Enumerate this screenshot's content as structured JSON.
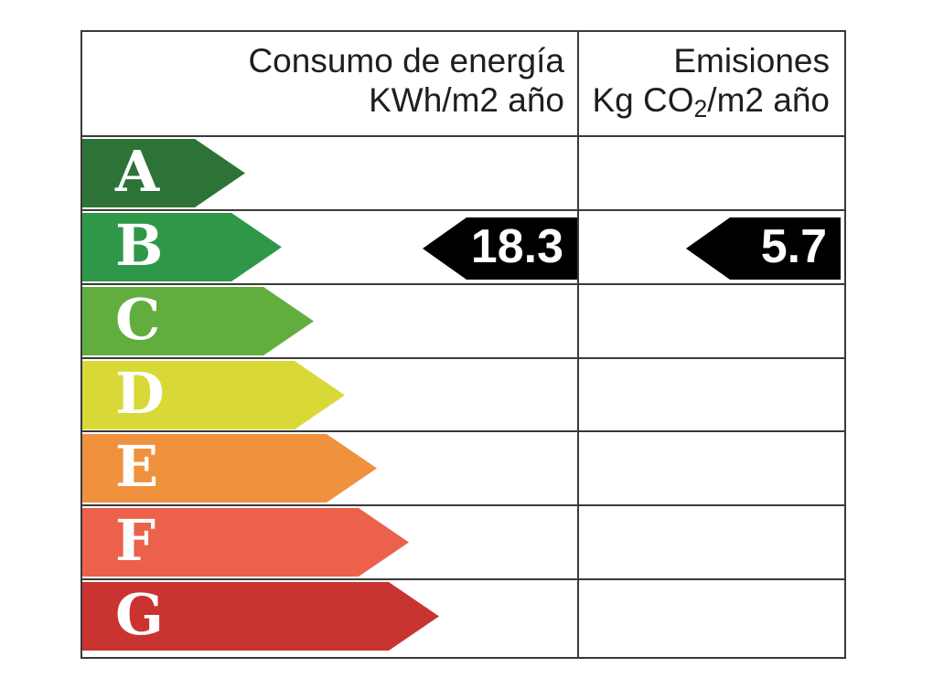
{
  "header": {
    "consumo_line1": "Consumo de energía",
    "consumo_line2": "KWh/m2 año",
    "emisiones_line1": "Emisiones",
    "emisiones_line2_prefix": "Kg CO",
    "emisiones_line2_sub": "2",
    "emisiones_line2_rest": "/m2 año"
  },
  "ratings": [
    {
      "letter": "A",
      "color": "#2d7338"
    },
    {
      "letter": "B",
      "color": "#2f9848"
    },
    {
      "letter": "C",
      "color": "#61ae3f"
    },
    {
      "letter": "D",
      "color": "#d8d936"
    },
    {
      "letter": "E",
      "color": "#f0913e"
    },
    {
      "letter": "F",
      "color": "#eb614b"
    },
    {
      "letter": "G",
      "color": "#c93431"
    }
  ],
  "values": {
    "consumo": "18.3",
    "emisiones": "5.7"
  },
  "indicator_color": "#000000",
  "grid_color": "#3a3a3a",
  "chart_data": {
    "type": "bar",
    "title": "",
    "categories": [
      "A",
      "B",
      "C",
      "D",
      "E",
      "F",
      "G"
    ],
    "bar_colors": [
      "#2d7338",
      "#2f9848",
      "#61ae3f",
      "#d8d936",
      "#f0913e",
      "#eb614b",
      "#c93431"
    ],
    "bar_lengths_relative": [
      1.0,
      1.22,
      1.42,
      1.61,
      1.81,
      2.01,
      2.19
    ],
    "columns": [
      {
        "label": "Consumo de energía KWh/m2 año",
        "value": 18.3,
        "rating": "B"
      },
      {
        "label": "Emisiones Kg CO2/m2 año",
        "value": 5.7,
        "rating": "B"
      }
    ],
    "legend_position": "none",
    "grid": true
  }
}
